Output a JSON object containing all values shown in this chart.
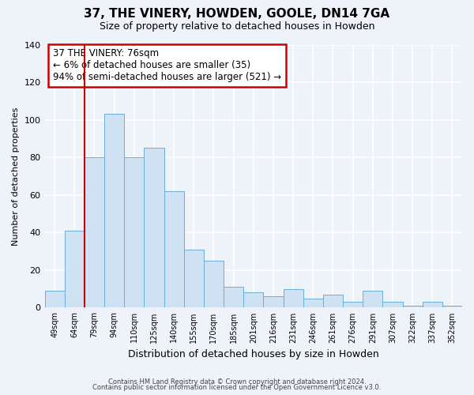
{
  "title": "37, THE VINERY, HOWDEN, GOOLE, DN14 7GA",
  "subtitle": "Size of property relative to detached houses in Howden",
  "xlabel": "Distribution of detached houses by size in Howden",
  "ylabel": "Number of detached properties",
  "bar_labels": [
    "49sqm",
    "64sqm",
    "79sqm",
    "94sqm",
    "110sqm",
    "125sqm",
    "140sqm",
    "155sqm",
    "170sqm",
    "185sqm",
    "201sqm",
    "216sqm",
    "231sqm",
    "246sqm",
    "261sqm",
    "276sqm",
    "291sqm",
    "307sqm",
    "322sqm",
    "337sqm",
    "352sqm"
  ],
  "bar_values": [
    9,
    41,
    80,
    103,
    80,
    85,
    62,
    31,
    25,
    11,
    8,
    6,
    10,
    5,
    7,
    3,
    9,
    3,
    1,
    3,
    1
  ],
  "bar_color": "#cfe2f3",
  "bar_edge_color": "#6aaed6",
  "vline_x_idx": 1,
  "vline_color": "#cc0000",
  "annotation_title": "37 THE VINERY: 76sqm",
  "annotation_line1": "← 6% of detached houses are smaller (35)",
  "annotation_line2": "94% of semi-detached houses are larger (521) →",
  "annotation_box_color": "#cc0000",
  "ylim": [
    0,
    140
  ],
  "yticks": [
    0,
    20,
    40,
    60,
    80,
    100,
    120,
    140
  ],
  "footer1": "Contains HM Land Registry data © Crown copyright and database right 2024.",
  "footer2": "Contains public sector information licensed under the Open Government Licence v3.0.",
  "background_color": "#eef2f9"
}
